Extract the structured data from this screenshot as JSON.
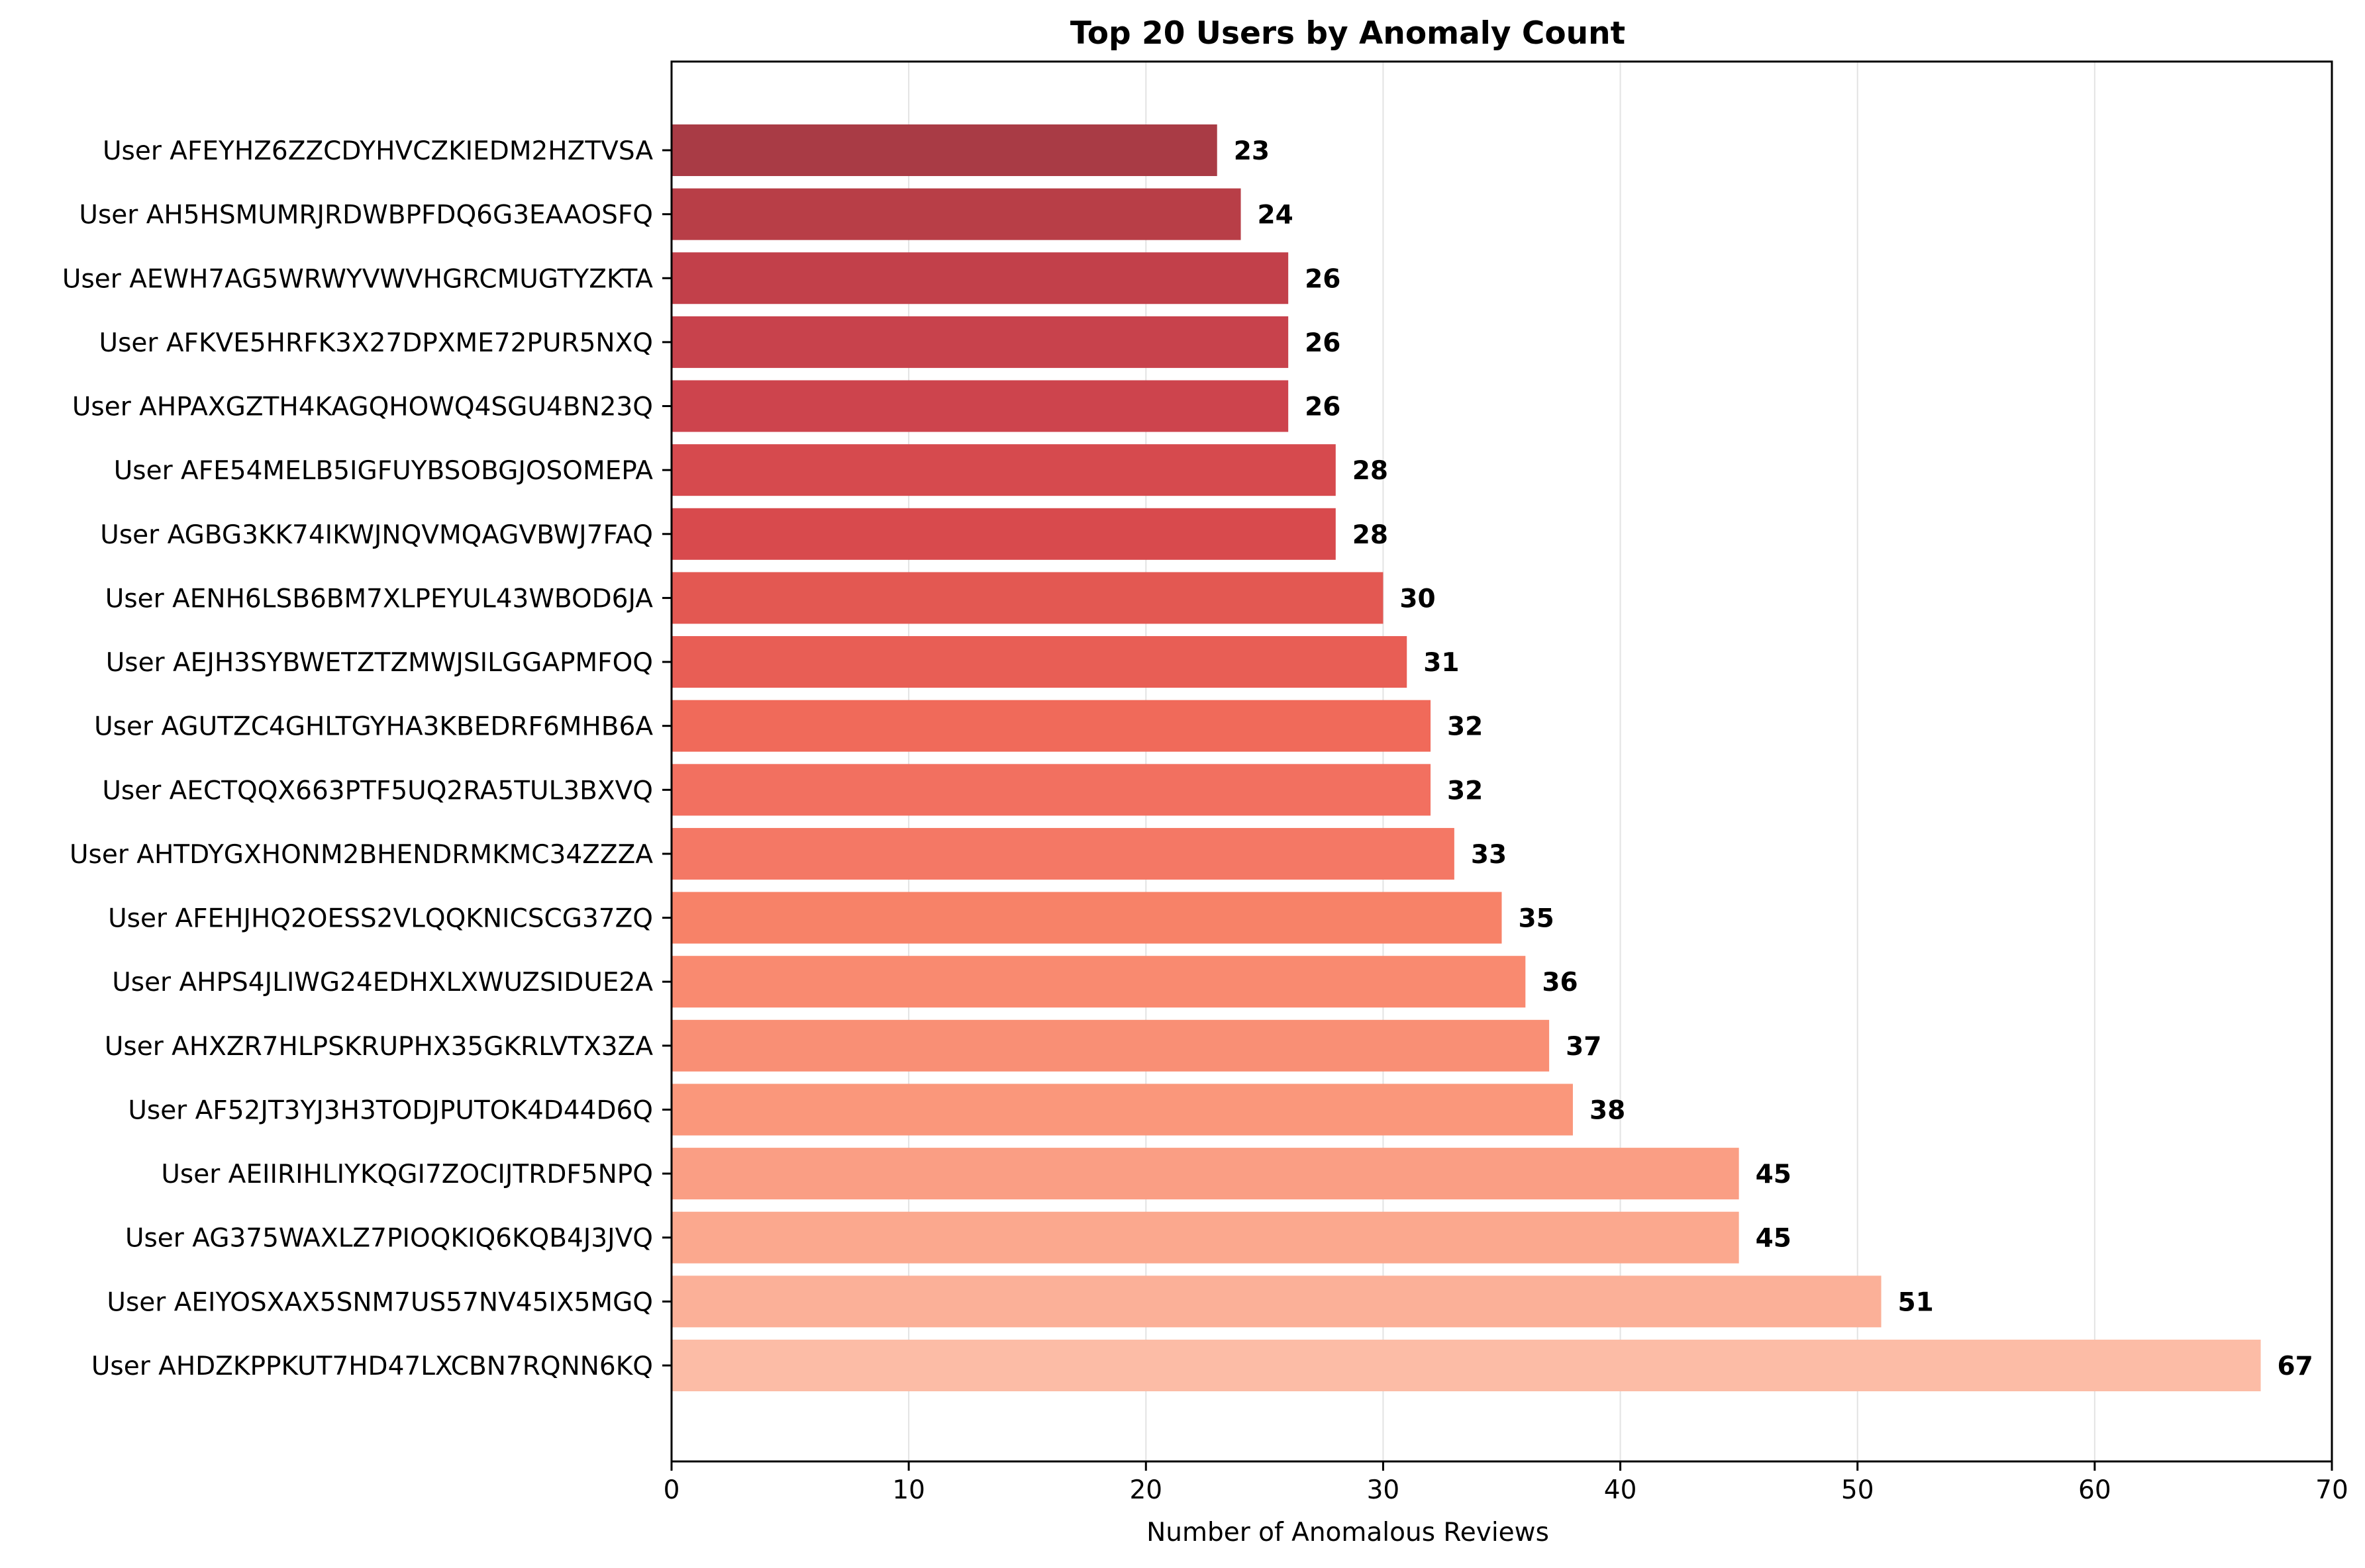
{
  "chart_data": {
    "type": "bar",
    "orientation": "horizontal",
    "title": "Top 20 Users by Anomaly Count",
    "xlabel": "Number of Anomalous Reviews",
    "ylabel": "",
    "xlim": [
      0,
      70
    ],
    "xticks": [
      0,
      10,
      20,
      30,
      40,
      50,
      60,
      70
    ],
    "grid": "x",
    "categories": [
      "User AFEYHZ6ZZCDYHVCZKIEDM2HZTVSA",
      "User AH5HSMUMRJRDWBPFDQ6G3EAAOSFQ",
      "User AEWH7AG5WRWYVWVHGRCMUGTYZKTA",
      "User AFKVE5HRFK3X27DPXME72PUR5NXQ",
      "User AHPAXGZTH4KAGQHOWQ4SGU4BN23Q",
      "User AFE54MELB5IGFUYBSOBGJOSOMEPA",
      "User AGBG3KK74IKWJNQVMQAGVBWJ7FAQ",
      "User AENH6LSB6BM7XLPEYUL43WBOD6JA",
      "User AEJH3SYBWETZTZMWJSILGGAPMFOQ",
      "User AGUTZC4GHLTGYHA3KBEDRF6MHB6A",
      "User AECTQQX663PTF5UQ2RA5TUL3BXVQ",
      "User AHTDYGXHONM2BHENDRMKMC34ZZZA",
      "User AFEHJHQ2OESS2VLQQKNICSCG37ZQ",
      "User AHPS4JLIWG24EDHXLXWUZSIDUE2A",
      "User AHXZR7HLPSKRUPHX35GKRLVTX3ZA",
      "User AF52JT3YJ3H3TODJPUTOK4D44D6Q",
      "User AEIIRIHLIYKQGI7ZOCIJTRDF5NPQ",
      "User AG375WAXLZ7PIOQKIQ6KQB4J3JVQ",
      "User AEIYOSXAX5SNM7US57NV45IX5MGQ",
      "User AHDZKPPKUT7HD47LXCBN7RQNN6KQ"
    ],
    "values": [
      23,
      24,
      26,
      26,
      26,
      28,
      28,
      30,
      31,
      32,
      32,
      33,
      35,
      36,
      37,
      38,
      45,
      45,
      51,
      67
    ],
    "colors": [
      "#a93b45",
      "#b83e47",
      "#c2404a",
      "#c8424c",
      "#cd444d",
      "#d64a4e",
      "#d84a4d",
      "#e35852",
      "#e85e55",
      "#f06a5a",
      "#f27060",
      "#f47865",
      "#f78268",
      "#f98a70",
      "#f98f75",
      "#fa977b",
      "#fa9e84",
      "#fba88e",
      "#fbb098",
      "#fcbca6"
    ]
  }
}
